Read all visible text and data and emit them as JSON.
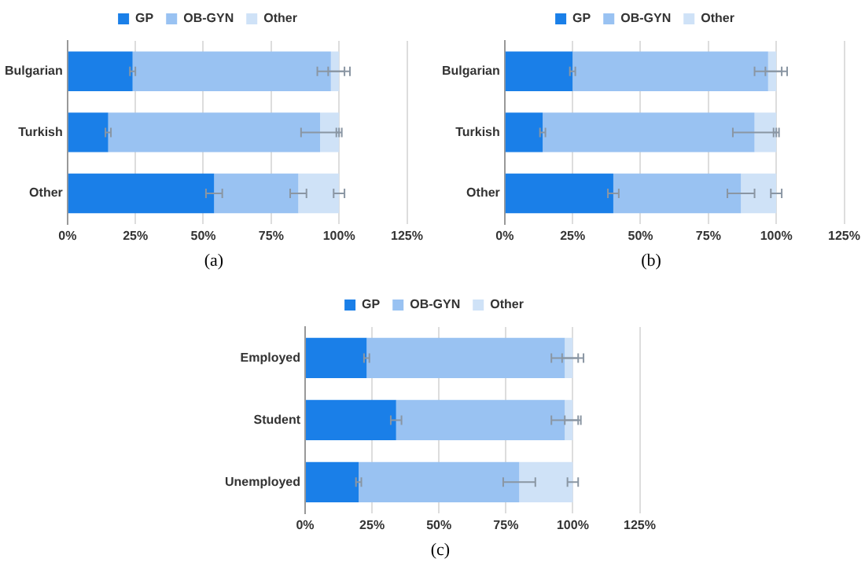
{
  "chart_data": [
    {
      "type": "bar",
      "orientation": "horizontal",
      "stacked": true,
      "categories": [
        "Bulgarian",
        "Turkish",
        "Other"
      ],
      "xlim": [
        0,
        125
      ],
      "xticks": [
        {
          "value": 0,
          "label": "0%"
        },
        {
          "value": 25,
          "label": "25%"
        },
        {
          "value": 50,
          "label": "50%"
        },
        {
          "value": 75,
          "label": "75%"
        },
        {
          "value": 100,
          "label": "100%"
        },
        {
          "value": 125,
          "label": "125%"
        }
      ],
      "grid": "x",
      "legend": "top",
      "annotations": [
        "(a)"
      ],
      "series": [
        {
          "name": "GP",
          "color": "#1a7fe8",
          "values": [
            24,
            15,
            54
          ],
          "errors": [
            1,
            1,
            3
          ]
        },
        {
          "name": "OB-GYN",
          "color": "#99c2f2",
          "values": [
            73,
            78,
            31
          ],
          "errors": [
            5,
            7,
            3
          ]
        },
        {
          "name": "Other",
          "color": "#cfe2f7",
          "values": [
            3,
            7,
            15
          ],
          "errors": [
            4,
            1,
            2
          ]
        }
      ]
    },
    {
      "type": "bar",
      "orientation": "horizontal",
      "stacked": true,
      "categories": [
        "Bulgarian",
        "Turkish",
        "Other"
      ],
      "xlim": [
        0,
        125
      ],
      "xticks": [
        {
          "value": 0,
          "label": "0%"
        },
        {
          "value": 25,
          "label": "25%"
        },
        {
          "value": 50,
          "label": "50%"
        },
        {
          "value": 75,
          "label": "75%"
        },
        {
          "value": 100,
          "label": "100%"
        },
        {
          "value": 125,
          "label": "125%"
        }
      ],
      "grid": "x",
      "legend": "top",
      "annotations": [
        "(b)"
      ],
      "series": [
        {
          "name": "GP",
          "color": "#1a7fe8",
          "values": [
            25,
            14,
            40
          ],
          "errors": [
            1,
            1,
            2
          ]
        },
        {
          "name": "OB-GYN",
          "color": "#99c2f2",
          "values": [
            72,
            78,
            47
          ],
          "errors": [
            5,
            8,
            5
          ]
        },
        {
          "name": "Other",
          "color": "#cfe2f7",
          "values": [
            3,
            8,
            13
          ],
          "errors": [
            4,
            1,
            2
          ]
        }
      ]
    },
    {
      "type": "bar",
      "orientation": "horizontal",
      "stacked": true,
      "categories": [
        "Employed",
        "Student",
        "Unemployed"
      ],
      "xlim": [
        0,
        125
      ],
      "xticks": [
        {
          "value": 0,
          "label": "0%"
        },
        {
          "value": 25,
          "label": "25%"
        },
        {
          "value": 50,
          "label": "50%"
        },
        {
          "value": 75,
          "label": "75%"
        },
        {
          "value": 100,
          "label": "100%"
        },
        {
          "value": 125,
          "label": "125%"
        }
      ],
      "grid": "x",
      "legend": "top",
      "annotations": [
        "(c)"
      ],
      "series": [
        {
          "name": "GP",
          "color": "#1a7fe8",
          "values": [
            23,
            34,
            20
          ],
          "errors": [
            1,
            2,
            1
          ]
        },
        {
          "name": "OB-GYN",
          "color": "#99c2f2",
          "values": [
            74,
            63,
            60
          ],
          "errors": [
            5,
            5,
            6
          ]
        },
        {
          "name": "Other",
          "color": "#cfe2f7",
          "values": [
            3,
            3,
            20
          ],
          "errors": [
            4,
            3,
            2
          ]
        }
      ]
    }
  ]
}
